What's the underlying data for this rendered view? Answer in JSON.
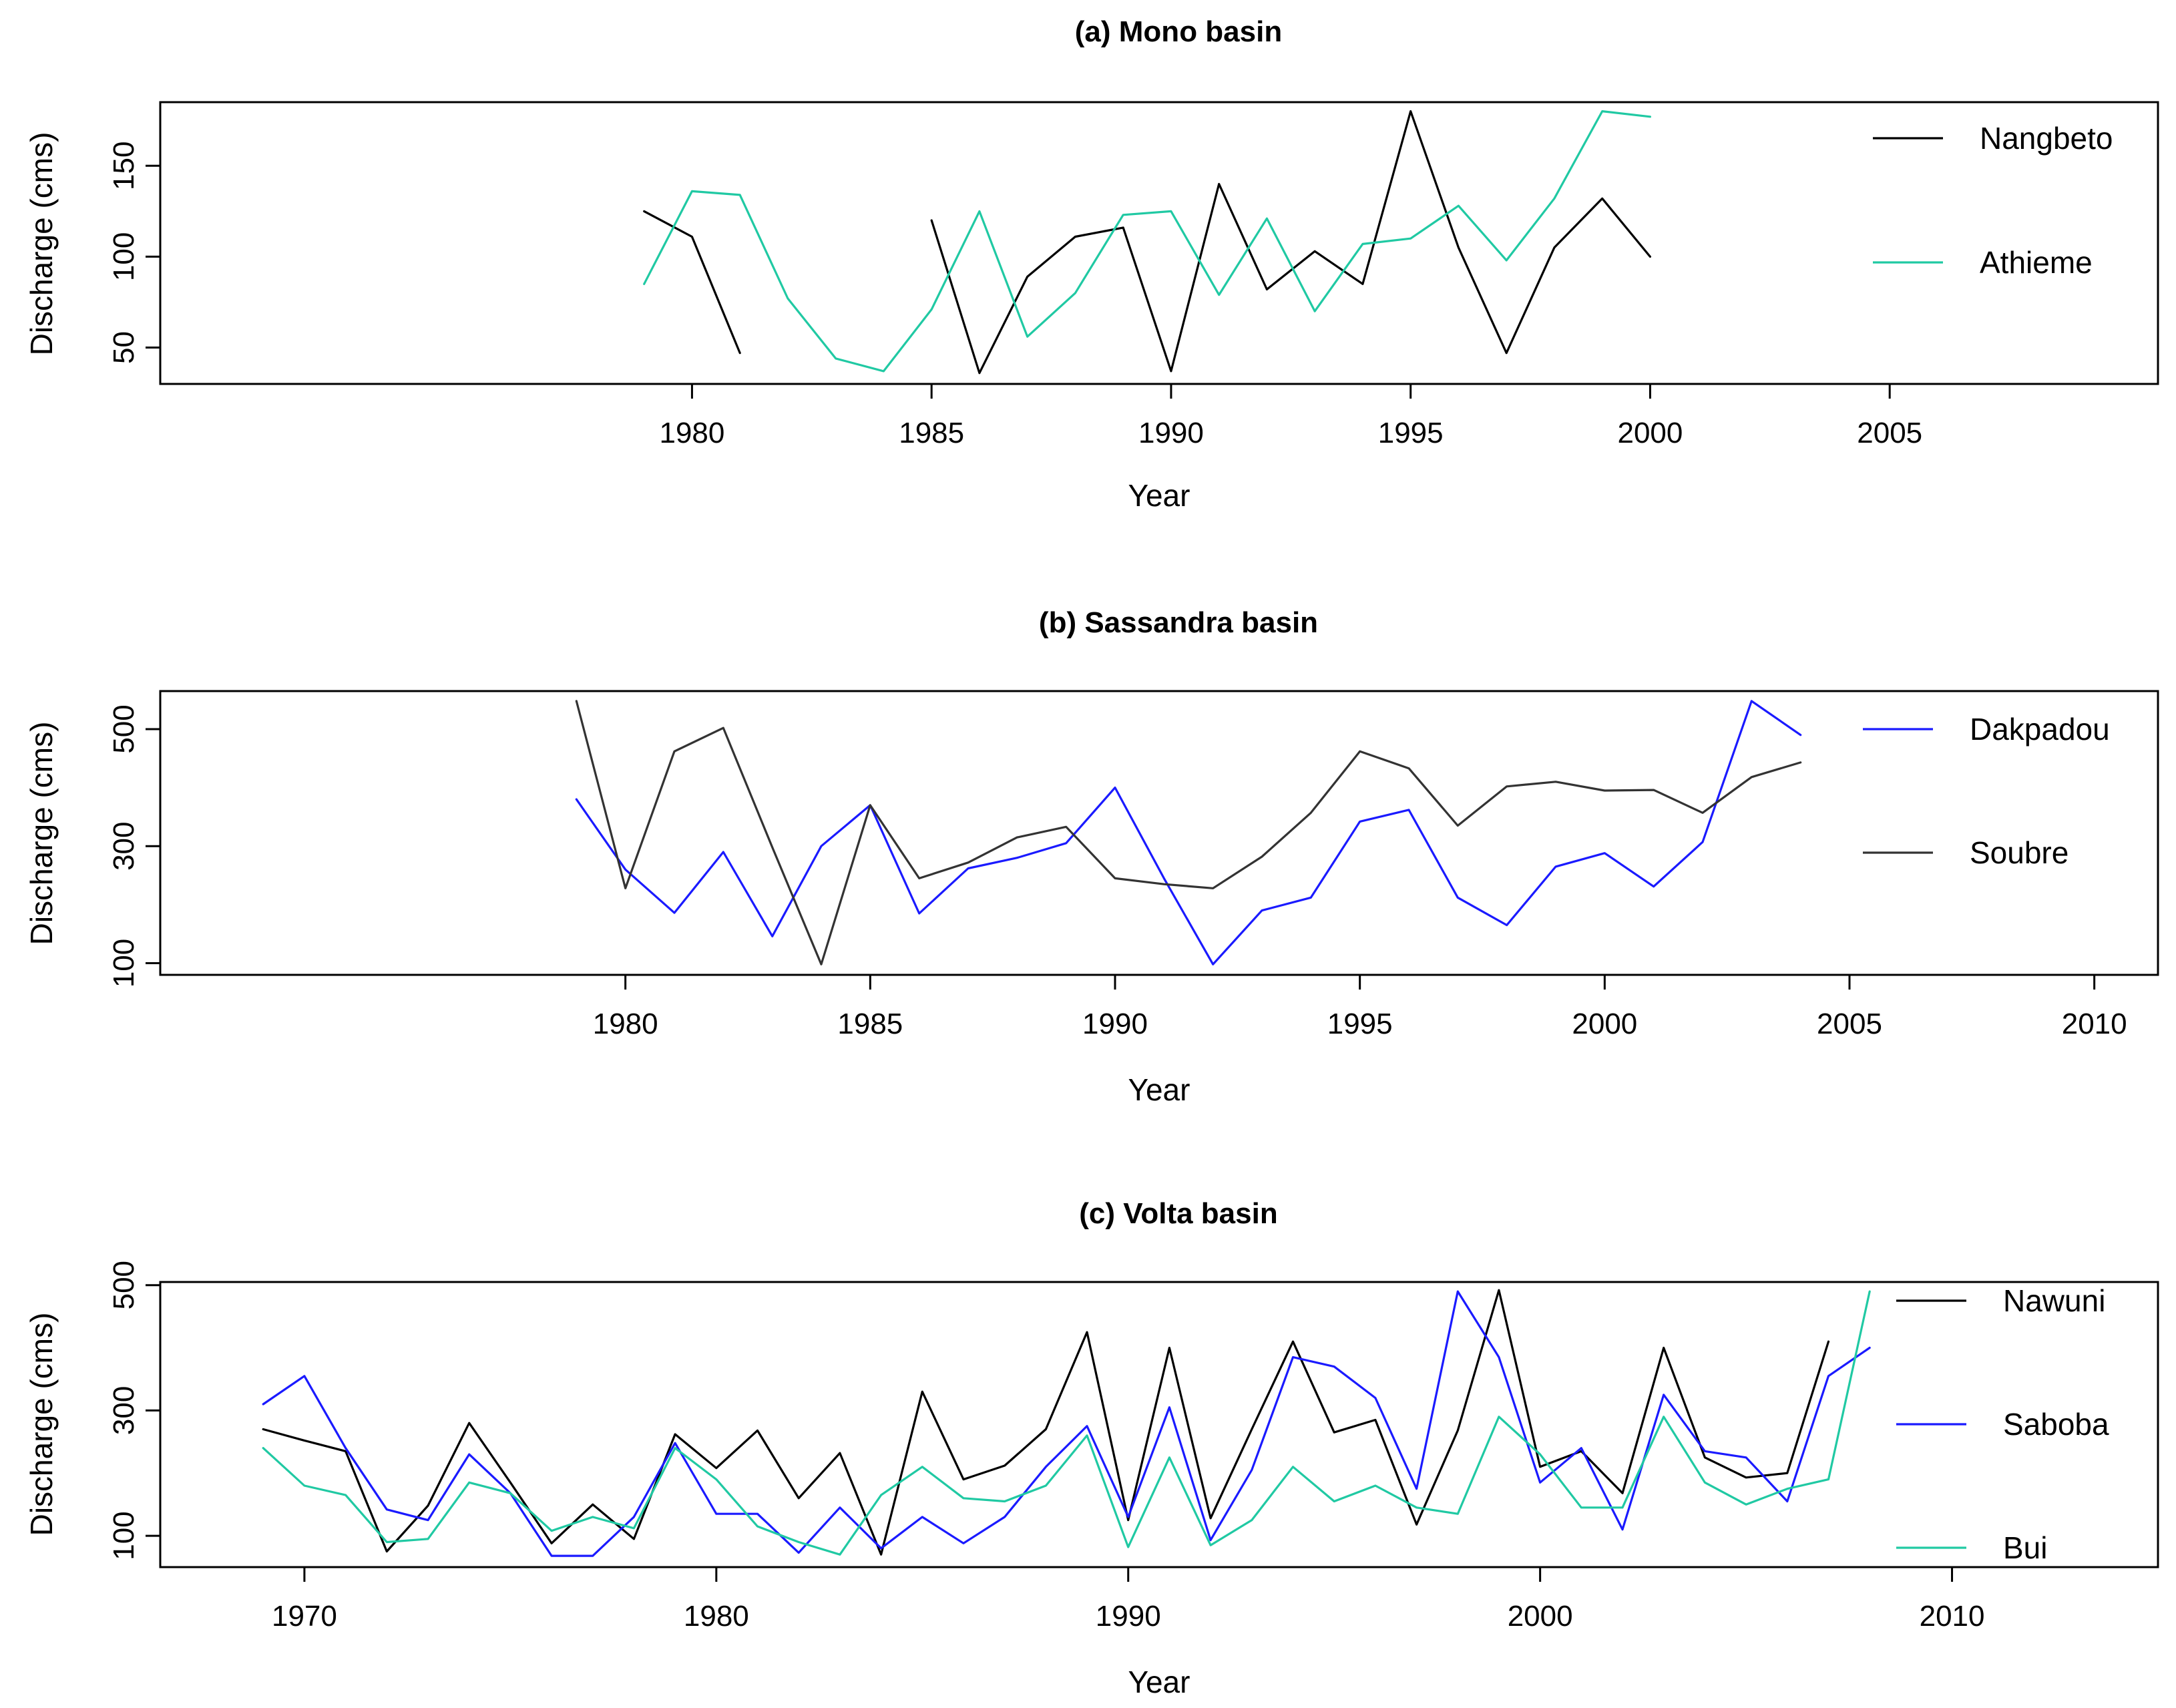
{
  "chart_data": [
    {
      "type": "line",
      "title": "(a)  Mono basin",
      "xlabel": "Year",
      "ylabel": "Discharge (cms)",
      "xlim": [
        1968.9,
        2010.6
      ],
      "ylim": [
        30,
        185
      ],
      "xticks": [
        1980,
        1985,
        1990,
        1995,
        2000,
        2005
      ],
      "yticks": [
        50,
        100,
        150
      ],
      "legend_position": "right",
      "series": [
        {
          "name": "Nangbeto",
          "color": "#000000",
          "segments": [
            {
              "x": [
                1979,
                1980,
                1981
              ],
              "y": [
                125,
                111,
                47
              ]
            },
            {
              "x": [
                1985,
                1986,
                1987,
                1988,
                1989,
                1990,
                1991,
                1992,
                1993,
                1994,
                1995,
                1996,
                1997,
                1998,
                1999,
                2000
              ],
              "y": [
                120,
                36,
                89,
                111,
                116,
                37,
                140,
                82,
                103,
                85,
                180,
                105,
                47,
                105,
                132,
                100
              ]
            }
          ]
        },
        {
          "name": "Athieme",
          "color": "#20c9a3",
          "segments": [
            {
              "x": [
                1979,
                1980,
                1981,
                1982,
                1983,
                1984,
                1985,
                1986,
                1987,
                1988,
                1989,
                1990,
                1991,
                1992,
                1993,
                1994,
                1995,
                1996,
                1997,
                1998,
                1999,
                2000
              ],
              "y": [
                85,
                136,
                134,
                77,
                44,
                37,
                71,
                125,
                56,
                80,
                123,
                125,
                79,
                121,
                70,
                107,
                110,
                128,
                98,
                132,
                180,
                177
              ]
            }
          ]
        }
      ]
    },
    {
      "type": "line",
      "title": "(b)  Sassandra basin",
      "xlabel": "Year",
      "ylabel": "Discharge (cms)",
      "xlim": [
        1970.5,
        2011.3
      ],
      "ylim": [
        80,
        565
      ],
      "xticks": [
        1980,
        1985,
        1990,
        1995,
        2000,
        2005,
        2010
      ],
      "yticks": [
        100,
        300,
        500
      ],
      "legend_position": "right",
      "series": [
        {
          "name": "Dakpadou",
          "color": "#1a1aff",
          "segments": [
            {
              "x": [
                1979,
                1980,
                1981,
                1982,
                1983,
                1984,
                1985,
                1986,
                1987,
                1988,
                1989,
                1990,
                1991,
                1992,
                1993,
                1994,
                1995,
                1996,
                1997,
                1998,
                1999,
                2000,
                2001,
                2002,
                2003,
                2004
              ],
              "y": [
                380,
                260,
                186,
                290,
                146,
                300,
                370,
                185,
                262,
                280,
                305,
                400,
                245,
                98,
                190,
                212,
                342,
                362,
                212,
                165,
                265,
                288,
                231,
                307,
                548,
                490
              ]
            }
          ]
        },
        {
          "name": "Soubre",
          "color": "#333333",
          "segments": [
            {
              "x": [
                1979,
                1980,
                1981,
                1982,
                1983,
                1984,
                1985,
                1986,
                1987,
                1988,
                1989,
                1990,
                1991,
                1992,
                1993,
                1994,
                1995,
                1996,
                1997,
                1998,
                1999,
                2000,
                2001,
                2002,
                2003,
                2004
              ],
              "y": [
                548,
                228,
                462,
                502,
                298,
                98,
                370,
                245,
                272,
                315,
                333,
                245,
                235,
                228,
                282,
                357,
                462,
                433,
                335,
                402,
                410,
                395,
                396,
                357,
                418,
                443
              ]
            }
          ]
        }
      ]
    },
    {
      "type": "line",
      "title": "(c)  Volta basin",
      "xlabel": "Year",
      "ylabel": "Discharge (cms)",
      "xlim": [
        1966.5,
        2015
      ],
      "ylim": [
        50,
        505
      ],
      "xticks": [
        1970,
        1980,
        1990,
        2000,
        2010
      ],
      "yticks": [
        100,
        300,
        500
      ],
      "legend_position": "right",
      "series": [
        {
          "name": "Nawuni",
          "color": "#000000",
          "segments": [
            {
              "x": [
                1969,
                1970,
                1971,
                1972,
                1973,
                1974,
                1975,
                1976,
                1977,
                1978,
                1979,
                1980,
                1981,
                1982,
                1983,
                1984,
                1985,
                1986,
                1987,
                1988,
                1989,
                1990,
                1991,
                1992,
                1993,
                1994,
                1995,
                1996,
                1997,
                1998,
                1999,
                2000,
                2001,
                2002,
                2003,
                2004,
                2005,
                2006,
                2007
              ],
              "y": [
                270,
                252,
                235,
                75,
                148,
                280,
                185,
                88,
                150,
                95,
                262,
                208,
                268,
                160,
                232,
                70,
                330,
                190,
                212,
                270,
                425,
                125,
                400,
                128,
                270,
                410,
                265,
                285,
                118,
                268,
                492,
                210,
                235,
                168,
                400,
                225,
                193,
                200,
                410
              ]
            }
          ]
        },
        {
          "name": "Saboba",
          "color": "#1a1aff",
          "segments": [
            {
              "x": [
                1969,
                1970,
                1971,
                1972,
                1973,
                1974,
                1975,
                1976,
                1977,
                1978,
                1979,
                1980,
                1981,
                1982,
                1983,
                1984,
                1985,
                1986,
                1987,
                1988,
                1989,
                1990,
                1991,
                1992,
                1993,
                1994,
                1995,
                1996,
                1997,
                1998,
                1999,
                2000,
                2001,
                2002,
                2003,
                2004,
                2005,
                2006,
                2007,
                2008
              ],
              "y": [
                310,
                355,
                240,
                142,
                125,
                230,
                168,
                68,
                68,
                130,
                248,
                135,
                135,
                73,
                145,
                80,
                130,
                88,
                130,
                210,
                275,
                130,
                305,
                93,
                205,
                385,
                370,
                320,
                175,
                490,
                385,
                185,
                240,
                110,
                325,
                235,
                225,
                155,
                355,
                400
              ]
            }
          ]
        },
        {
          "name": "Bui",
          "color": "#20c9a3",
          "segments": [
            {
              "x": [
                1969,
                1970,
                1971,
                1972,
                1973,
                1974,
                1975,
                1976,
                1977,
                1978,
                1979,
                1980,
                1981,
                1982,
                1983,
                1984,
                1985,
                1986,
                1987,
                1988,
                1989,
                1990,
                1991,
                1992,
                1993,
                1994,
                1995,
                1996,
                1997,
                1998,
                1999,
                2000,
                2001,
                2002,
                2003,
                2004,
                2005,
                2006,
                2007,
                2008
              ],
              "y": [
                240,
                180,
                165,
                90,
                95,
                185,
                168,
                108,
                130,
                112,
                240,
                190,
                115,
                90,
                70,
                165,
                210,
                160,
                155,
                180,
                260,
                82,
                225,
                85,
                125,
                210,
                155,
                180,
                145,
                135,
                290,
                230,
                145,
                145,
                290,
                185,
                150,
                175,
                190,
                490
              ]
            }
          ]
        }
      ]
    }
  ]
}
